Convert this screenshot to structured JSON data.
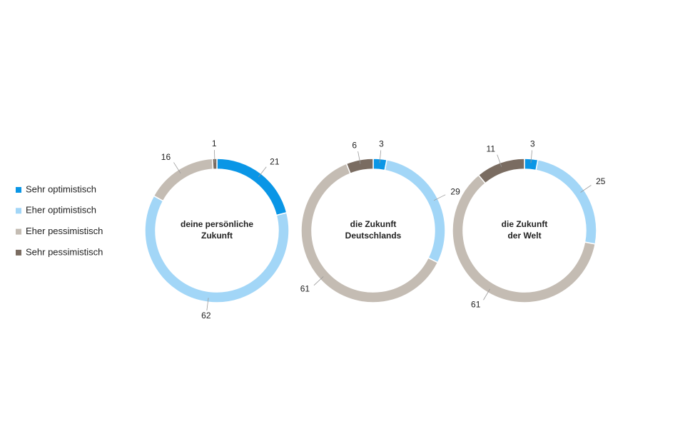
{
  "chart_data": {
    "type": "donut",
    "categories": [
      "Sehr optimistisch",
      "Eher optimistisch",
      "Eher pessimistisch",
      "Sehr pessimistisch"
    ],
    "colors": [
      "#0a96e6",
      "#a2d6f7",
      "#c4bcb3",
      "#7a6c61"
    ],
    "series": [
      {
        "name": [
          "deine persönliche",
          "Zukunft"
        ],
        "values": [
          21,
          62,
          16,
          1
        ]
      },
      {
        "name": [
          "die Zukunft",
          "Deutschlands"
        ],
        "values": [
          3,
          29,
          61,
          6
        ]
      },
      {
        "name": [
          "die Zukunft",
          "der Welt"
        ],
        "values": [
          3,
          25,
          61,
          11
        ]
      }
    ]
  }
}
